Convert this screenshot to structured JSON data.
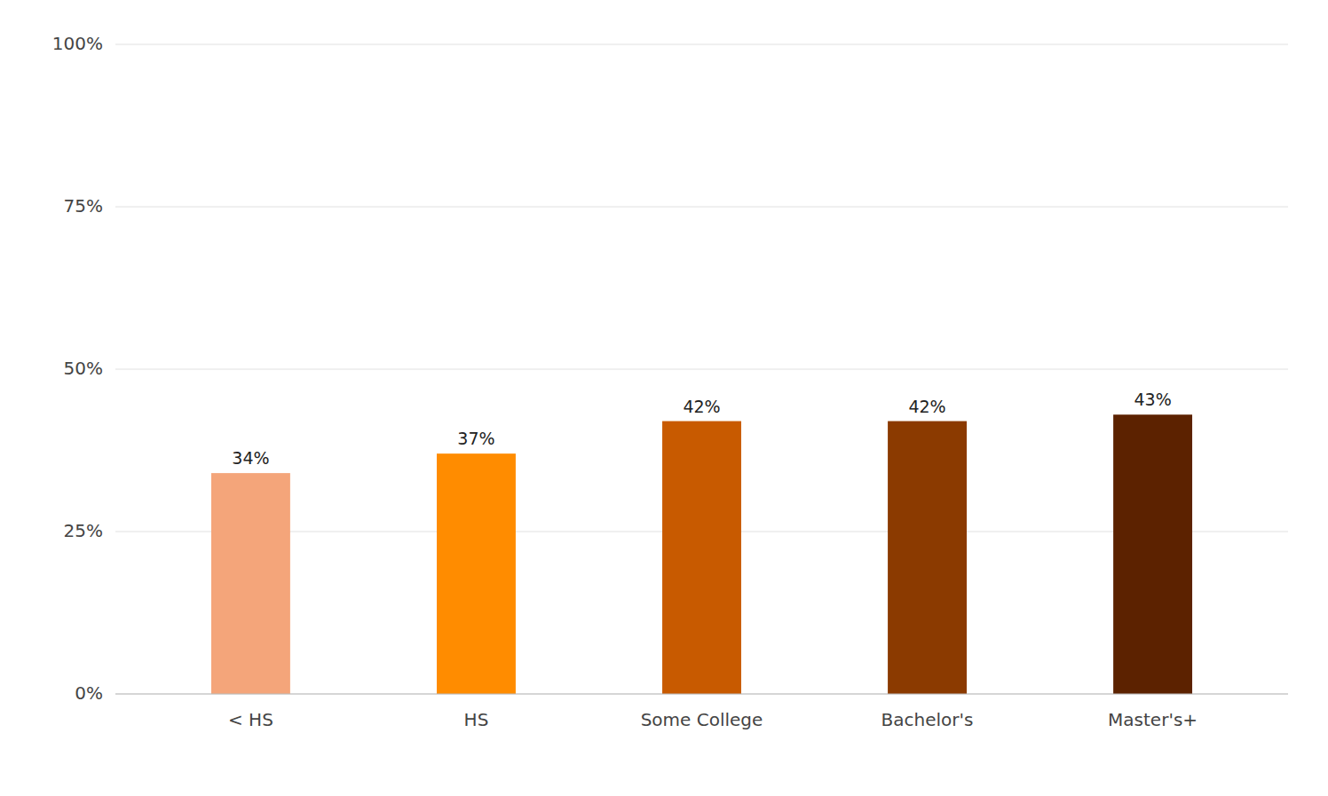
{
  "chart_data": {
    "type": "bar",
    "categories": [
      "< HS",
      "HS",
      "Some College",
      "Bachelor's",
      "Master's+"
    ],
    "values": [
      0.34,
      0.37,
      0.42,
      0.42,
      0.43
    ],
    "value_labels": [
      "34%",
      "37%",
      "42%",
      "42%",
      "43%"
    ],
    "colors": [
      "#F4A57A",
      "#FF8C00",
      "#C85A00",
      "#8B3A00",
      "#5C2200"
    ],
    "ylim": [
      0,
      1.0
    ],
    "yticks": [
      {
        "value": 0,
        "label": "0%"
      },
      {
        "value": 0.25,
        "label": "25%"
      },
      {
        "value": 0.5,
        "label": "50%"
      },
      {
        "value": 0.75,
        "label": "75%"
      },
      {
        "value": 1.0,
        "label": "100%"
      }
    ],
    "grid": true,
    "data_labels": true
  }
}
